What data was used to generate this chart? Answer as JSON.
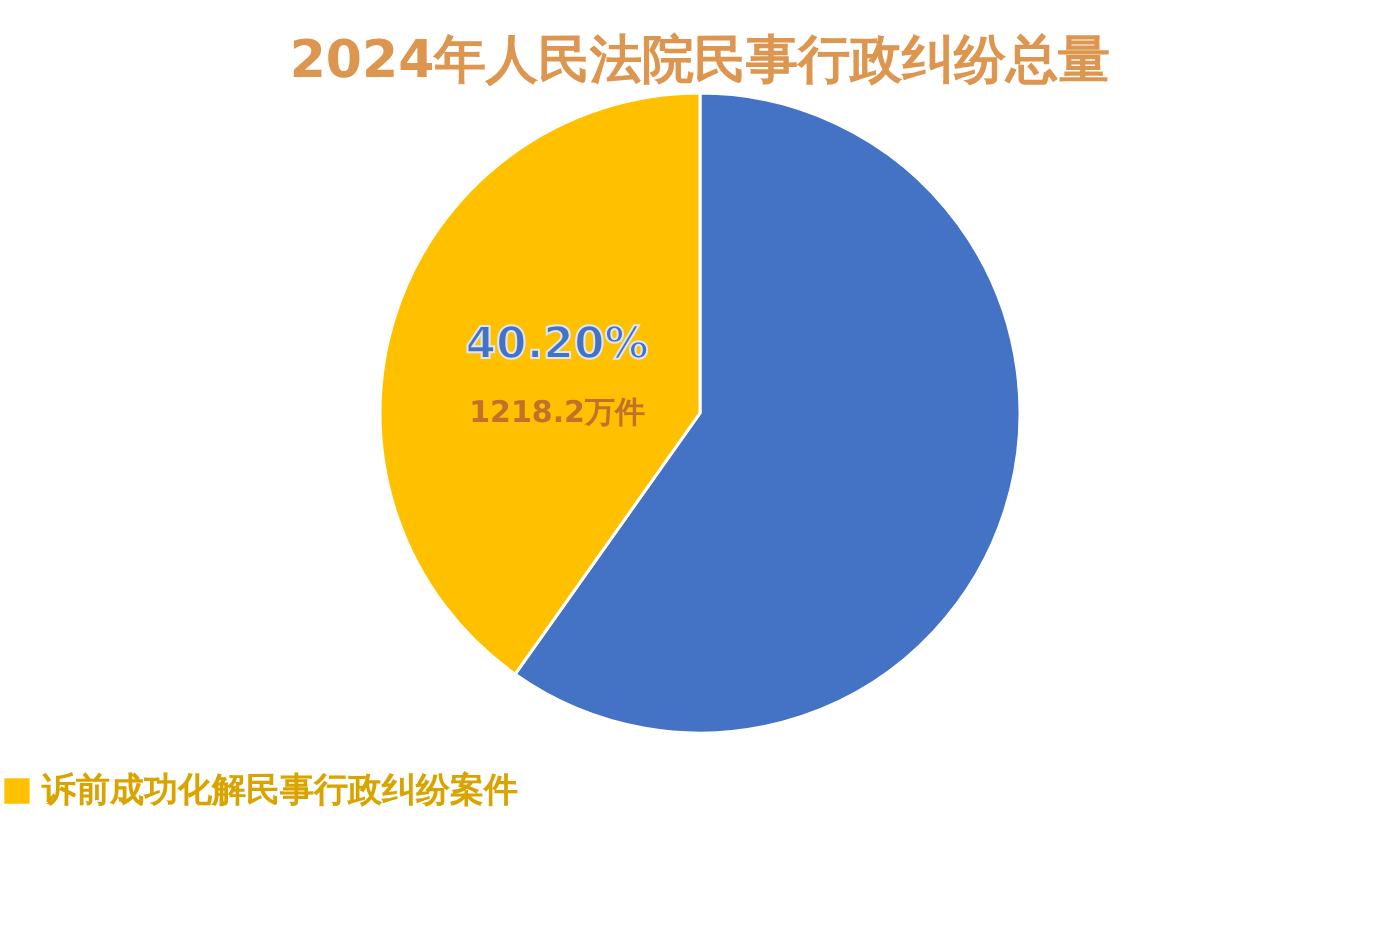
{
  "chart_data": {
    "type": "pie",
    "title": "2024年人民法院民事行政纠纷总量",
    "categories": [
      null,
      "诉前成功化解民事行政纠纷案件"
    ],
    "values": [
      59.8,
      40.2
    ],
    "colors": [
      "#4472c4",
      "#ffc000"
    ],
    "value_labels": [
      null,
      "40.20%"
    ],
    "annotations": [
      {
        "text": "1218.2万件",
        "x": "诉前成功化解民事行政纠纷案件"
      }
    ],
    "legend": "bottom"
  }
}
